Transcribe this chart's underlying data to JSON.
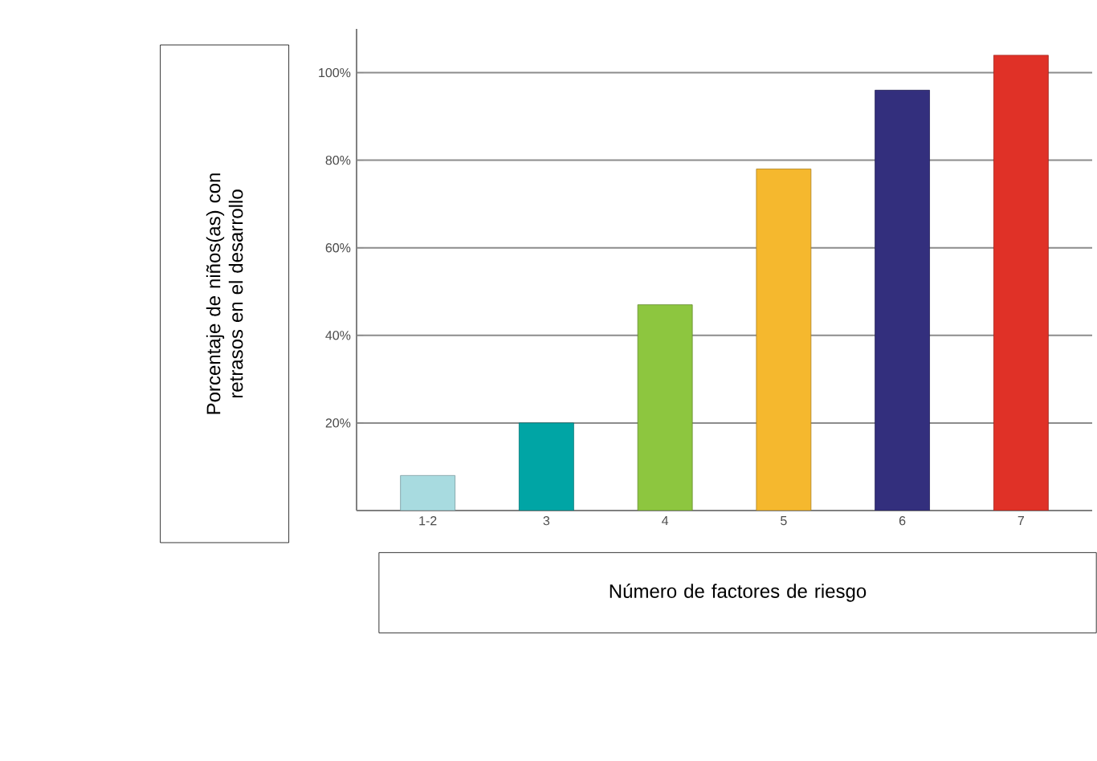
{
  "chart_data": {
    "type": "bar",
    "xlabel": "Número de factores de riesgo",
    "ylabel": "Porcentaje de niños(as) con retrasos en el desarrollo",
    "categories": [
      "1-2",
      "3",
      "4",
      "5",
      "6",
      "7"
    ],
    "values": [
      8,
      20,
      47,
      78,
      96,
      104
    ],
    "colors": [
      "#a8dbe0",
      "#00a5a5",
      "#8dc63f",
      "#f5b82e",
      "#332f7d",
      "#e03127"
    ],
    "ylim": [
      0,
      110
    ],
    "yticks": [
      {
        "value": 20,
        "label": "20%"
      },
      {
        "value": 40,
        "label": "40%"
      },
      {
        "value": 60,
        "label": "60%"
      },
      {
        "value": 80,
        "label": "80%"
      },
      {
        "value": 100,
        "label": "100%"
      }
    ],
    "grid": "y"
  }
}
